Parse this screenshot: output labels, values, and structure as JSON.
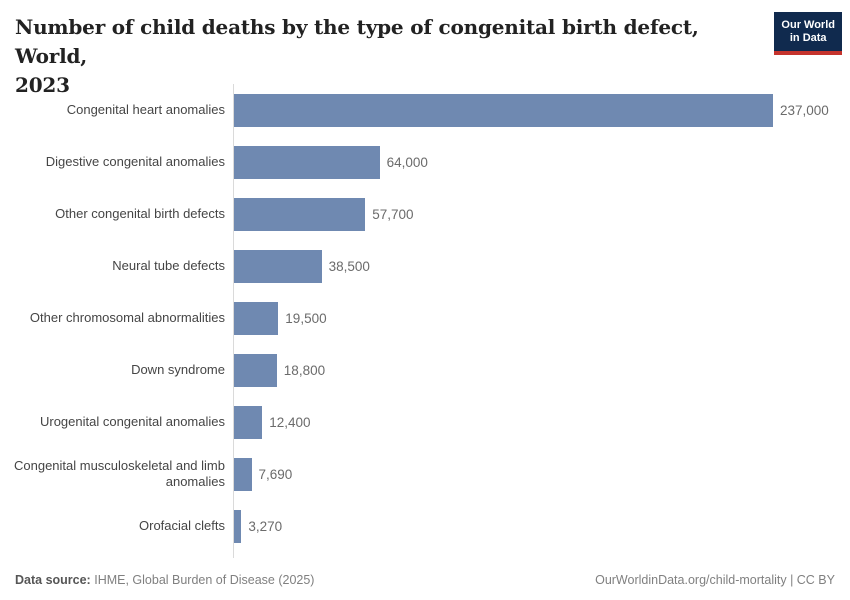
{
  "header": {
    "title_line1": "Number of child deaths by the type of congenital birth defect, World,",
    "title_line2": "2023",
    "logo": {
      "line1": "Our World",
      "line2": "in Data"
    }
  },
  "chart_data": {
    "type": "bar",
    "orientation": "horizontal",
    "title": "Number of child deaths by the type of congenital birth defect, World, 2023",
    "categories": [
      "Congenital heart anomalies",
      "Digestive congenital anomalies",
      "Other congenital birth defects",
      "Neural tube defects",
      "Other chromosomal abnormalities",
      "Down syndrome",
      "Urogenital congenital anomalies",
      "Congenital musculoskeletal and limb anomalies",
      "Orofacial clefts"
    ],
    "values": [
      237000,
      64000,
      57700,
      38500,
      19500,
      18800,
      12400,
      7690,
      3270
    ],
    "value_labels": [
      "237,000",
      "64,000",
      "57,700",
      "38,500",
      "19,500",
      "18,800",
      "12,400",
      "7,690",
      "3,270"
    ],
    "xlim": [
      0,
      237000
    ],
    "grid": false,
    "legend": "none",
    "bar_color": "#6f89b1"
  },
  "footer": {
    "source_label": "Data source:",
    "source_value": "IHME, Global Burden of Disease (2025)",
    "credit": "OurWorldinData.org/child-mortality | CC BY"
  },
  "colors": {
    "bar": "#6f89b1",
    "axis_line": "#dadada",
    "title_text": "#222222",
    "category_text": "#454545",
    "value_text": "#6b6b6b",
    "footer_text": "#808080",
    "logo_background": "#102a4e",
    "logo_accent": "#c5332d"
  }
}
